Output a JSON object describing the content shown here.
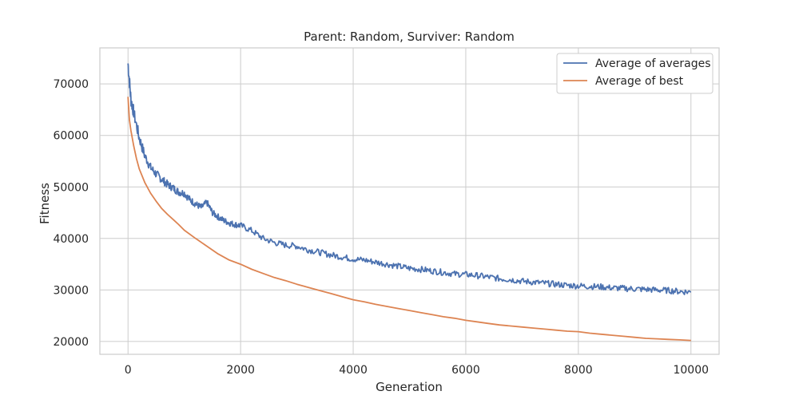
{
  "chart_data": {
    "type": "line",
    "title": "Parent: Random, Surviver: Random",
    "xlabel": "Generation",
    "ylabel": "Fitness",
    "xlim": [
      -500,
      10500
    ],
    "ylim": [
      17500,
      77000
    ],
    "xticks": [
      0,
      2000,
      4000,
      6000,
      8000,
      10000
    ],
    "yticks": [
      20000,
      30000,
      40000,
      50000,
      60000,
      70000
    ],
    "grid": true,
    "legend_position": "top-right",
    "series": [
      {
        "name": "Average of averages",
        "color": "#4c72b0",
        "x": [
          0,
          50,
          100,
          200,
          300,
          400,
          500,
          600,
          700,
          800,
          900,
          1000,
          1100,
          1200,
          1300,
          1400,
          1500,
          1600,
          1700,
          1800,
          1900,
          2000,
          2200,
          2400,
          2600,
          2800,
          3000,
          3200,
          3400,
          3600,
          3800,
          4000,
          4200,
          4400,
          4600,
          4800,
          5000,
          5200,
          5400,
          5600,
          5800,
          6000,
          6200,
          6400,
          6600,
          6800,
          7000,
          7200,
          7400,
          7600,
          7800,
          8000,
          8200,
          8400,
          8600,
          8800,
          9000,
          9200,
          9400,
          9600,
          9800,
          10000
        ],
        "values": [
          74000,
          67000,
          64500,
          59500,
          56000,
          53800,
          52500,
          51500,
          50500,
          49800,
          49000,
          48800,
          47500,
          46700,
          46000,
          47000,
          45000,
          44200,
          43500,
          43000,
          42700,
          42500,
          41500,
          40000,
          39200,
          38700,
          38500,
          37800,
          37300,
          36800,
          36400,
          36000,
          35800,
          35400,
          35000,
          34600,
          34200,
          34000,
          33700,
          33400,
          33100,
          33000,
          32800,
          32500,
          32200,
          32000,
          31700,
          31500,
          31300,
          31100,
          30900,
          30800,
          30700,
          30600,
          30400,
          30300,
          30200,
          30100,
          30000,
          29900,
          29700,
          29600
        ]
      },
      {
        "name": "Average of best",
        "color": "#dd8452",
        "x": [
          0,
          25,
          50,
          100,
          150,
          200,
          300,
          400,
          500,
          600,
          700,
          800,
          900,
          1000,
          1200,
          1400,
          1600,
          1800,
          2000,
          2200,
          2400,
          2600,
          2800,
          3000,
          3200,
          3400,
          3600,
          3800,
          4000,
          4200,
          4400,
          4600,
          4800,
          5000,
          5200,
          5400,
          5600,
          5800,
          6000,
          6200,
          6400,
          6600,
          6800,
          7000,
          7200,
          7400,
          7600,
          7800,
          8000,
          8200,
          8400,
          8600,
          8800,
          9000,
          9200,
          9400,
          9600,
          9800,
          10000
        ],
        "values": [
          67500,
          63000,
          61000,
          58000,
          55500,
          53500,
          50800,
          48800,
          47200,
          45800,
          44700,
          43700,
          42700,
          41600,
          40000,
          38500,
          37000,
          35800,
          35000,
          34000,
          33200,
          32400,
          31800,
          31100,
          30500,
          29900,
          29300,
          28700,
          28100,
          27700,
          27200,
          26800,
          26400,
          26000,
          25600,
          25200,
          24800,
          24500,
          24100,
          23800,
          23500,
          23200,
          23000,
          22800,
          22600,
          22400,
          22200,
          22000,
          21900,
          21600,
          21400,
          21200,
          21000,
          20800,
          20600,
          20500,
          20400,
          20300,
          20200
        ]
      }
    ]
  }
}
